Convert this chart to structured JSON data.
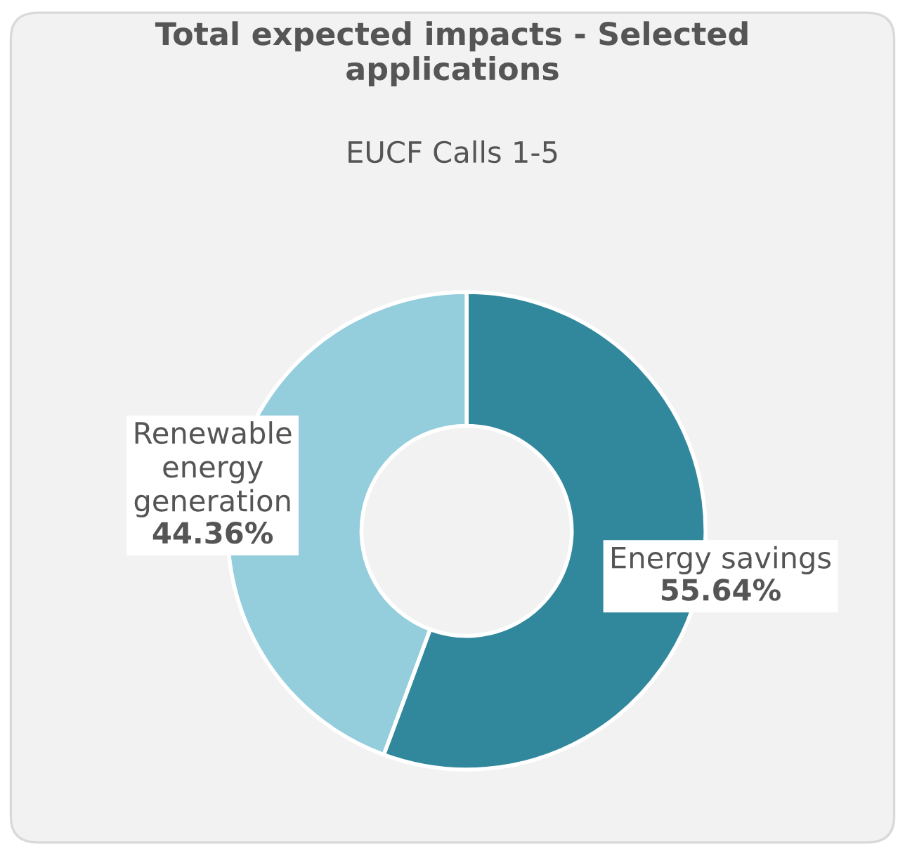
{
  "chart_data": {
    "type": "donut",
    "title": "Total expected impacts - Selected applications",
    "subtitle": "EUCF Calls 1-5",
    "categories": [
      "Energy savings",
      "Renewable energy generation"
    ],
    "values": [
      55.64,
      44.36
    ],
    "colors": [
      "#31879c",
      "#94cddc"
    ],
    "value_labels": [
      "55.64%",
      "44.36%"
    ]
  }
}
